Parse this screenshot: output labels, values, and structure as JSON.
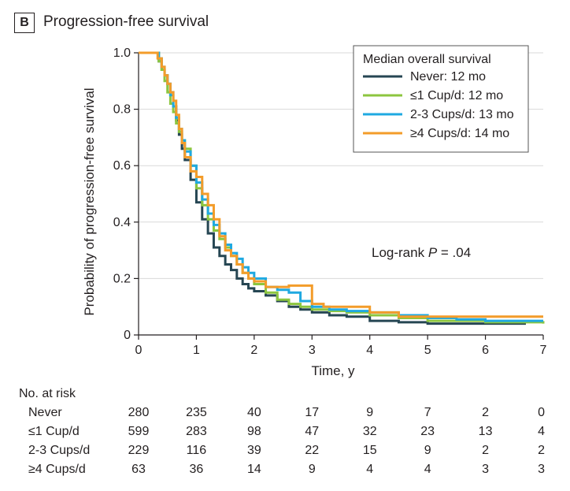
{
  "panel": {
    "label": "B",
    "title": "Progression-free survival"
  },
  "colors": {
    "never": "#264653",
    "le1": "#8cc63f",
    "two3": "#1fa9e1",
    "ge4": "#f39c2a",
    "grid": "#d9d9d9",
    "axis": "#231f20"
  },
  "chart_data": {
    "type": "line",
    "title": "Progression-free survival",
    "xlabel": "Time, y",
    "ylabel": "Probability of progression-free survival",
    "xlim": [
      0,
      7
    ],
    "ylim": [
      0,
      1.0
    ],
    "x_ticks": [
      0,
      1,
      2,
      3,
      4,
      5,
      6,
      7
    ],
    "x_tick_labels": [
      "0",
      "1",
      "2",
      "3",
      "4",
      "5",
      "6",
      "7"
    ],
    "y_ticks": [
      0,
      0.2,
      0.4,
      0.6,
      0.8,
      1.0
    ],
    "y_tick_labels": [
      "0",
      "0.2",
      "0.4",
      "0.6",
      "0.8",
      "1.0"
    ],
    "grid": "horizontal",
    "legend": {
      "title": "Median overall survival",
      "placement": "top-right",
      "entries": [
        "Never: 12 mo",
        "≤1 Cup/d: 12 mo",
        "2-3 Cups/d: 13 mo",
        "≥4 Cups/d: 14 mo"
      ]
    },
    "annotation": {
      "prefix": "Log-rank ",
      "italic": "P",
      "suffix": " = .04"
    },
    "series": [
      {
        "name": "Never",
        "color_key": "never",
        "x": [
          0,
          0.3,
          0.35,
          0.4,
          0.45,
          0.5,
          0.55,
          0.6,
          0.65,
          0.7,
          0.75,
          0.8,
          0.9,
          1.0,
          1.1,
          1.2,
          1.3,
          1.4,
          1.5,
          1.6,
          1.7,
          1.8,
          1.9,
          2.0,
          2.2,
          2.4,
          2.6,
          2.8,
          3.0,
          3.3,
          3.6,
          4.0,
          4.5,
          5.0,
          5.5,
          6.0,
          6.5,
          6.7
        ],
        "y": [
          1.0,
          1.0,
          0.97,
          0.94,
          0.92,
          0.89,
          0.86,
          0.81,
          0.76,
          0.71,
          0.66,
          0.62,
          0.55,
          0.47,
          0.41,
          0.36,
          0.31,
          0.28,
          0.25,
          0.23,
          0.2,
          0.18,
          0.165,
          0.155,
          0.14,
          0.12,
          0.1,
          0.09,
          0.08,
          0.07,
          0.065,
          0.05,
          0.045,
          0.04,
          0.04,
          0.04,
          0.04,
          0.04
        ]
      },
      {
        "name": "≤1 Cup/d",
        "color_key": "le1",
        "x": [
          0,
          0.3,
          0.35,
          0.4,
          0.45,
          0.5,
          0.55,
          0.6,
          0.65,
          0.7,
          0.75,
          0.8,
          0.9,
          1.0,
          1.1,
          1.2,
          1.3,
          1.4,
          1.5,
          1.6,
          1.7,
          1.8,
          1.9,
          2.0,
          2.2,
          2.4,
          2.6,
          2.8,
          3.0,
          3.3,
          3.6,
          4.0,
          4.5,
          5.0,
          5.5,
          6.0,
          6.5,
          7.0
        ],
        "y": [
          1.0,
          1.0,
          0.97,
          0.94,
          0.9,
          0.86,
          0.82,
          0.79,
          0.75,
          0.72,
          0.69,
          0.66,
          0.6,
          0.52,
          0.46,
          0.41,
          0.37,
          0.34,
          0.31,
          0.28,
          0.25,
          0.22,
          0.2,
          0.18,
          0.15,
          0.125,
          0.11,
          0.1,
          0.09,
          0.085,
          0.08,
          0.07,
          0.06,
          0.05,
          0.05,
          0.045,
          0.045,
          0.04
        ]
      },
      {
        "name": "2-3 Cups/d",
        "color_key": "two3",
        "x": [
          0,
          0.3,
          0.35,
          0.4,
          0.45,
          0.5,
          0.55,
          0.6,
          0.65,
          0.7,
          0.75,
          0.8,
          0.9,
          1.0,
          1.1,
          1.2,
          1.3,
          1.4,
          1.5,
          1.6,
          1.7,
          1.8,
          1.9,
          2.0,
          2.2,
          2.4,
          2.6,
          2.8,
          3.0,
          3.3,
          3.6,
          4.0,
          4.5,
          5.0,
          5.5,
          6.0,
          6.5,
          7.0
        ],
        "y": [
          1.0,
          1.0,
          0.98,
          0.95,
          0.92,
          0.89,
          0.85,
          0.81,
          0.77,
          0.73,
          0.69,
          0.65,
          0.6,
          0.54,
          0.48,
          0.43,
          0.39,
          0.36,
          0.32,
          0.29,
          0.27,
          0.24,
          0.22,
          0.2,
          0.17,
          0.16,
          0.15,
          0.12,
          0.1,
          0.09,
          0.085,
          0.08,
          0.07,
          0.06,
          0.055,
          0.05,
          0.05,
          0.05
        ]
      },
      {
        "name": "≥4 Cups/d",
        "color_key": "ge4",
        "x": [
          0,
          0.3,
          0.33,
          0.4,
          0.45,
          0.5,
          0.55,
          0.6,
          0.65,
          0.7,
          0.75,
          0.8,
          0.9,
          1.0,
          1.1,
          1.2,
          1.3,
          1.4,
          1.5,
          1.6,
          1.7,
          1.8,
          1.9,
          2.0,
          2.2,
          2.4,
          2.6,
          2.8,
          3.0,
          3.2,
          3.6,
          4.0,
          4.5,
          5.0,
          5.5,
          6.0,
          6.5,
          7.0
        ],
        "y": [
          1.0,
          1.0,
          0.98,
          0.95,
          0.92,
          0.89,
          0.86,
          0.83,
          0.78,
          0.73,
          0.68,
          0.63,
          0.58,
          0.56,
          0.5,
          0.46,
          0.41,
          0.35,
          0.3,
          0.28,
          0.25,
          0.22,
          0.2,
          0.19,
          0.17,
          0.17,
          0.175,
          0.175,
          0.11,
          0.1,
          0.1,
          0.08,
          0.065,
          0.065,
          0.065,
          0.065,
          0.065,
          0.065
        ]
      }
    ]
  },
  "risk_table": {
    "title": "No. at risk",
    "rows": [
      {
        "label": "Never",
        "values": [
          "280",
          "235",
          "40",
          "17",
          "9",
          "7",
          "2",
          "0"
        ]
      },
      {
        "label": "≤1 Cup/d",
        "values": [
          "599",
          "283",
          "98",
          "47",
          "32",
          "23",
          "13",
          "4"
        ]
      },
      {
        "label": "2-3 Cups/d",
        "values": [
          "229",
          "116",
          "39",
          "22",
          "15",
          "9",
          "2",
          "2"
        ]
      },
      {
        "label": "≥4 Cups/d",
        "values": [
          "63",
          "36",
          "14",
          "9",
          "4",
          "4",
          "3",
          "3"
        ]
      }
    ]
  }
}
